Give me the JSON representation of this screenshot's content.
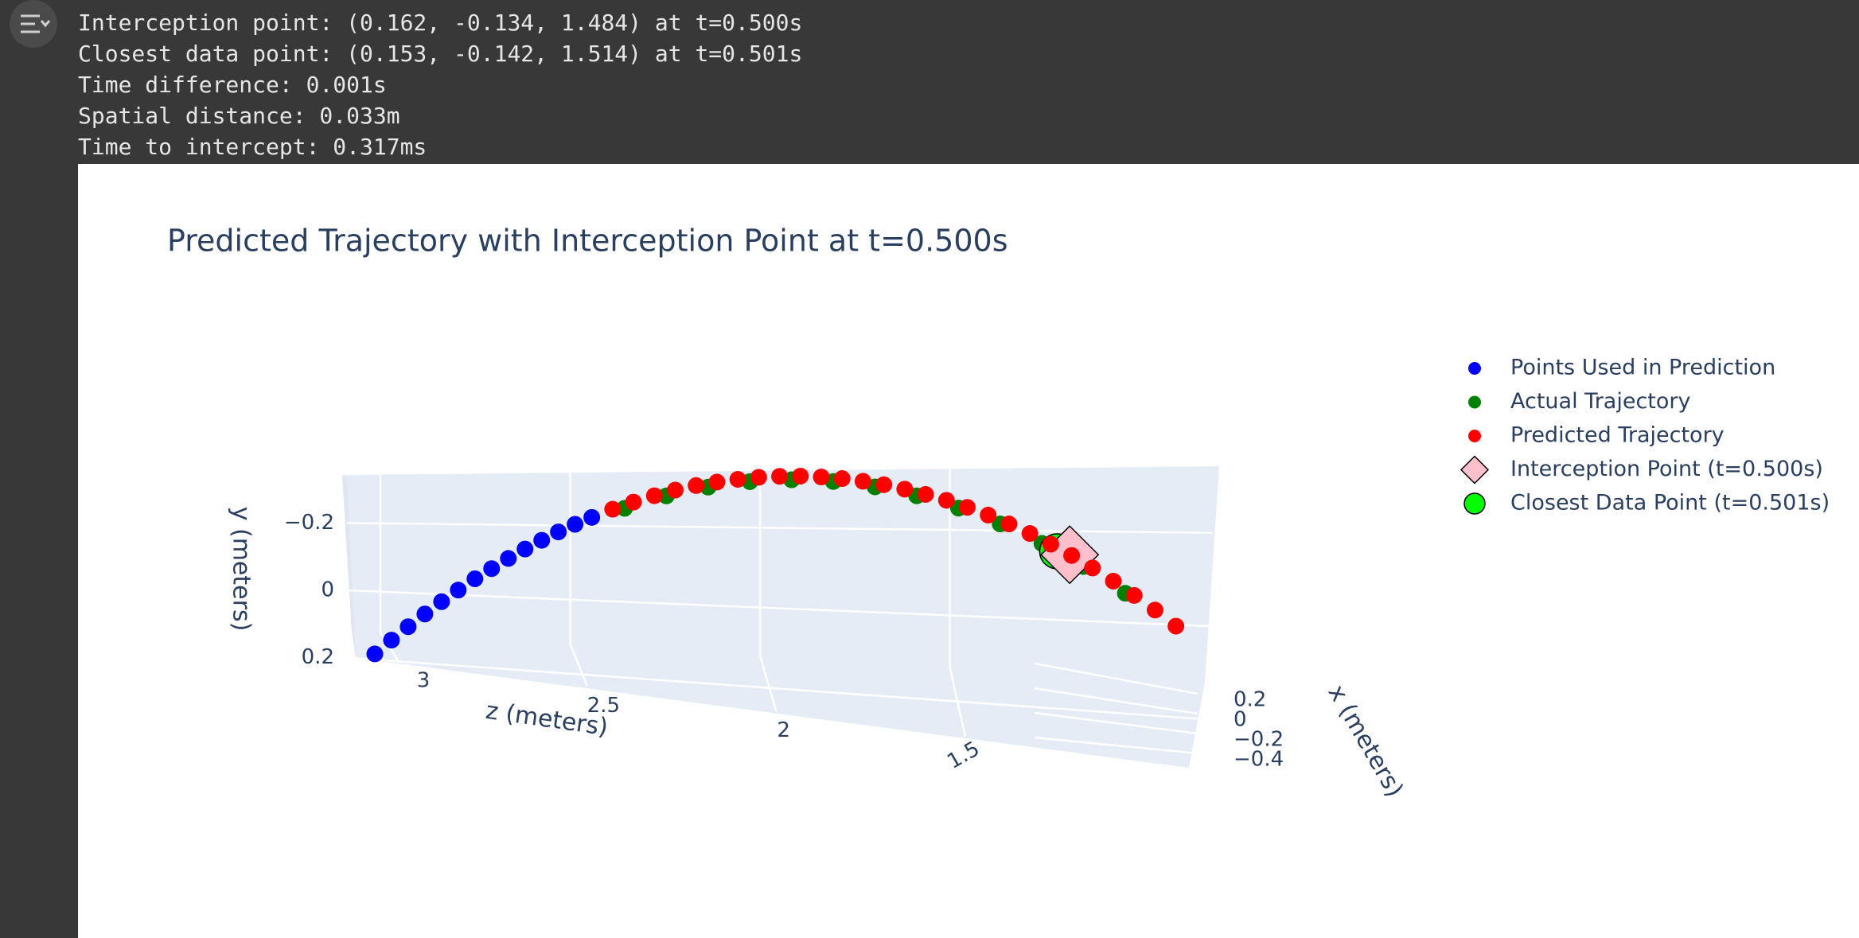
{
  "output": {
    "lines": [
      "Interception point: (0.162, -0.134, 1.484) at t=0.500s",
      "Closest data point: (0.153, -0.142, 1.514) at t=0.501s",
      "Time difference: 0.001s",
      "Spatial distance: 0.033m",
      "Time to intercept: 0.317ms"
    ]
  },
  "chart_data": {
    "type": "scatter3d",
    "title": "Predicted Trajectory with Interception Point at t=0.500s",
    "x_label": "x (meters)",
    "y_label": "y (meters)",
    "z_label": "z (meters)",
    "xlim": [
      -0.45,
      0.25
    ],
    "ylim": [
      -0.34,
      0.24
    ],
    "zlim": [
      1.2,
      3.2
    ],
    "xticks": [
      0.2,
      0,
      {
        "value": -0.2,
        "label": "−0.2"
      },
      {
        "value": -0.4,
        "label": "−0.4"
      }
    ],
    "yticks": [
      {
        "value": -0.2,
        "label": "−0.2"
      },
      0,
      0.2
    ],
    "zticks": [
      3,
      2.5,
      2,
      1.5
    ],
    "grid": true,
    "legend": "right",
    "series": [
      {
        "name": "Points Used in Prediction",
        "color": "#0000ff",
        "marker": "circle",
        "x": [
          -0.3,
          -0.289,
          -0.278,
          -0.266,
          -0.255,
          -0.244,
          -0.233,
          -0.222,
          -0.21,
          -0.199,
          -0.188,
          -0.177,
          -0.166,
          -0.154
        ],
        "y": [
          0.22,
          0.18,
          0.141,
          0.104,
          0.068,
          0.034,
          0.001,
          -0.029,
          -0.059,
          -0.087,
          -0.113,
          -0.138,
          -0.161,
          -0.182
        ],
        "z": [
          3.15,
          3.11,
          3.07,
          3.03,
          2.99,
          2.95,
          2.91,
          2.87,
          2.83,
          2.79,
          2.75,
          2.71,
          2.67,
          2.63
        ]
      },
      {
        "name": "Actual Trajectory",
        "color": "#008000",
        "marker": "circle",
        "x": [
          -0.142,
          -0.114,
          -0.086,
          -0.058,
          -0.03,
          -0.002,
          0.026,
          0.054,
          0.082,
          0.11,
          0.138,
          0.166,
          0.194
        ],
        "y": [
          -0.211,
          -0.25,
          -0.279,
          -0.299,
          -0.309,
          -0.309,
          -0.299,
          -0.279,
          -0.25,
          -0.211,
          -0.162,
          -0.103,
          -0.034
        ],
        "z": [
          2.55,
          2.45,
          2.35,
          2.25,
          2.15,
          2.05,
          1.95,
          1.85,
          1.75,
          1.65,
          1.55,
          1.45,
          1.35
        ]
      },
      {
        "name": "Predicted Trajectory",
        "color": "#ff0000",
        "marker": "circle",
        "x": [
          -0.14,
          -0.126,
          -0.112,
          -0.098,
          -0.084,
          -0.07,
          -0.056,
          -0.042,
          -0.028,
          -0.014,
          0.0,
          0.014,
          0.028,
          0.042,
          0.056,
          0.07,
          0.084,
          0.098,
          0.112,
          0.126,
          0.14,
          0.154,
          0.168,
          0.182,
          0.196,
          0.21,
          0.224,
          0.238
        ],
        "y": [
          -0.207,
          -0.229,
          -0.249,
          -0.267,
          -0.282,
          -0.294,
          -0.304,
          -0.312,
          -0.317,
          -0.32,
          -0.32,
          -0.318,
          -0.313,
          -0.306,
          -0.296,
          -0.284,
          -0.27,
          -0.253,
          -0.234,
          -0.212,
          -0.188,
          -0.161,
          -0.132,
          -0.1,
          -0.066,
          -0.029,
          0.009,
          0.051
        ],
        "z": [
          2.58,
          2.53,
          2.48,
          2.43,
          2.38,
          2.33,
          2.28,
          2.23,
          2.18,
          2.13,
          2.08,
          2.03,
          1.98,
          1.93,
          1.88,
          1.83,
          1.78,
          1.73,
          1.68,
          1.63,
          1.58,
          1.53,
          1.48,
          1.43,
          1.38,
          1.33,
          1.28,
          1.23
        ]
      },
      {
        "name": "Interception Point (t=0.500s)",
        "color": "#ffc0cb",
        "marker": "diamond",
        "x": [
          0.162
        ],
        "y": [
          -0.134
        ],
        "z": [
          1.484
        ]
      },
      {
        "name": "Closest Data Point (t=0.501s)",
        "color": "#00ff00",
        "marker": "big-circle",
        "x": [
          0.153
        ],
        "y": [
          -0.142
        ],
        "z": [
          1.514
        ]
      }
    ],
    "draw_order": [
      0,
      1,
      4,
      3,
      2
    ]
  }
}
